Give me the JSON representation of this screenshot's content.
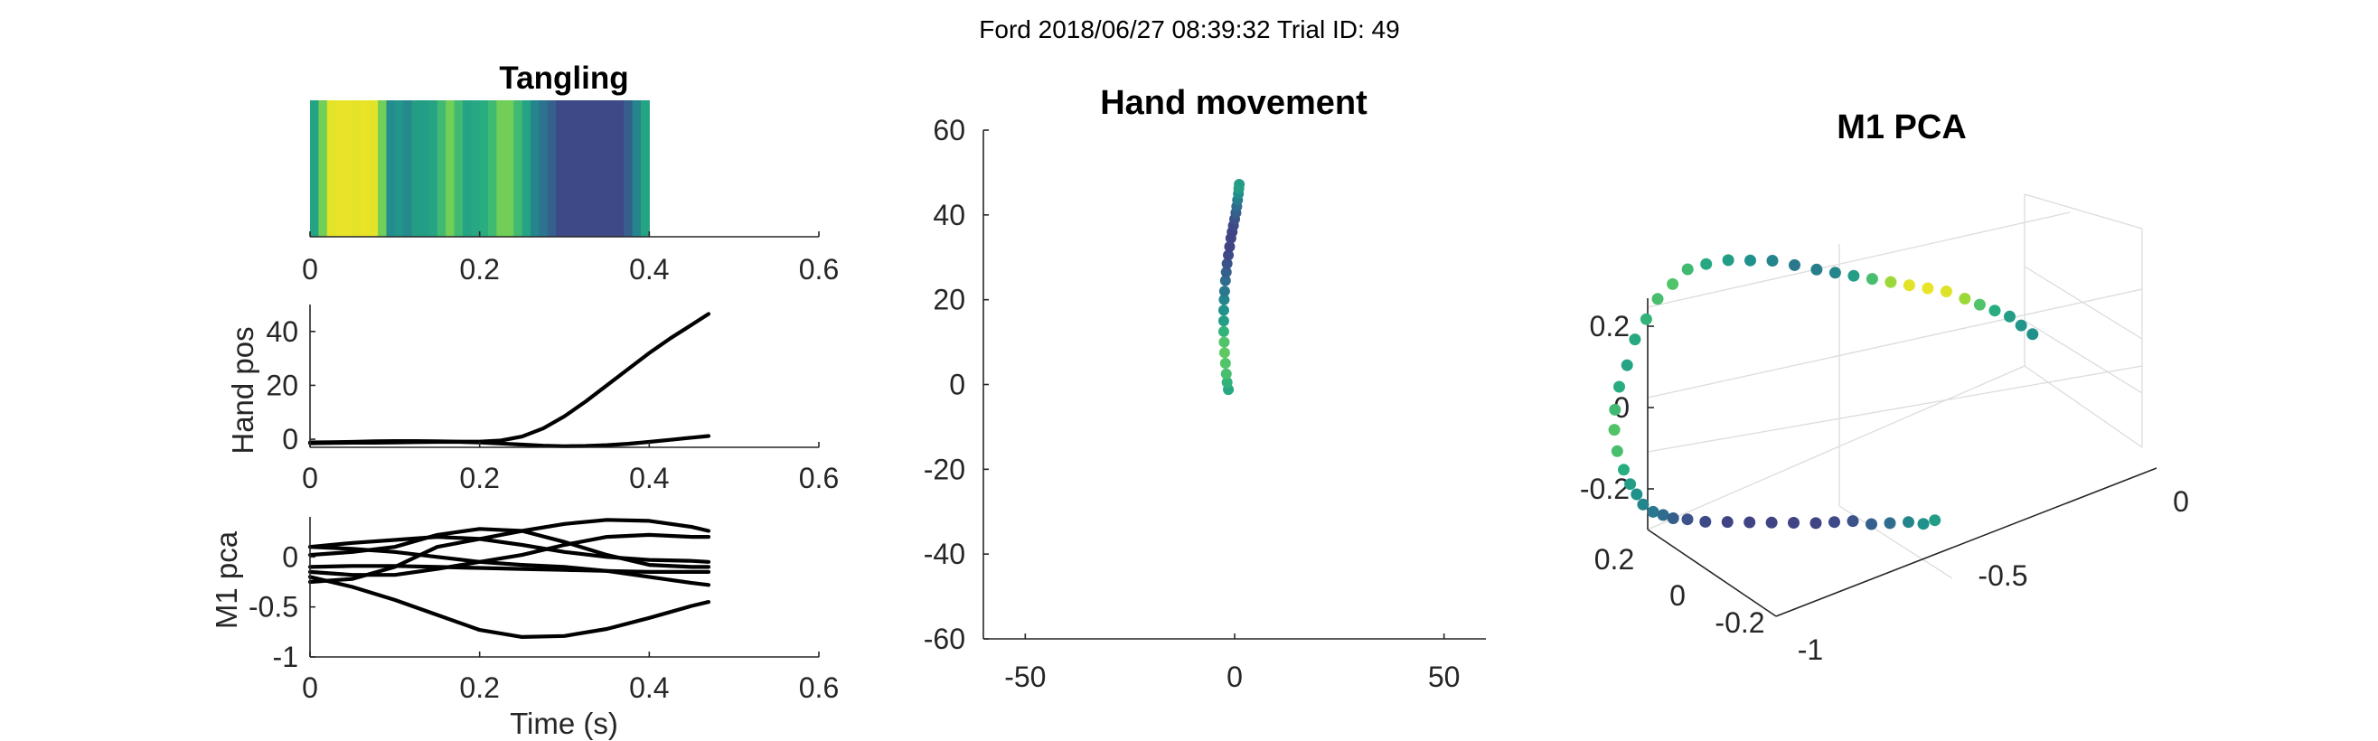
{
  "colors": {
    "map": [
      "#440154",
      "#472f7d",
      "#3b528b",
      "#2c728e",
      "#21918c",
      "#28ae80",
      "#5ec962",
      "#addc30",
      "#fde725"
    ],
    "text": "#262626",
    "trace": "#000000"
  },
  "figure": {
    "super_title": "Ford 2018/06/27 08:39:32 Trial ID: 49"
  },
  "chart_data": [
    {
      "id": "tangling",
      "type": "heatmap",
      "title": "Tangling",
      "xlim": [
        0,
        0.6
      ],
      "x_ticks": [
        "0",
        "0.2",
        "0.4",
        "0.6"
      ],
      "x_tick_values": [
        0,
        0.2,
        0.4,
        0.6
      ],
      "bin_width": 0.01,
      "values": [
        0.58,
        0.78,
        0.96,
        0.97,
        0.97,
        0.96,
        0.97,
        0.96,
        0.78,
        0.48,
        0.52,
        0.47,
        0.55,
        0.55,
        0.58,
        0.68,
        0.78,
        0.68,
        0.58,
        0.6,
        0.62,
        0.68,
        0.78,
        0.78,
        0.68,
        0.58,
        0.45,
        0.38,
        0.3,
        0.22,
        0.22,
        0.22,
        0.22,
        0.22,
        0.22,
        0.22,
        0.22,
        0.3,
        0.45,
        0.58
      ]
    },
    {
      "id": "hand_pos",
      "type": "line",
      "ylabel": "Hand pos",
      "xlim": [
        0,
        0.6
      ],
      "ylim": [
        -3,
        50
      ],
      "x_ticks": [
        "0",
        "0.2",
        "0.4",
        "0.6"
      ],
      "x_tick_values": [
        0,
        0.2,
        0.4,
        0.6
      ],
      "y_ticks": [
        "0",
        "20",
        "40"
      ],
      "y_tick_values": [
        0,
        20,
        40
      ],
      "x": [
        0.0,
        0.025,
        0.05,
        0.075,
        0.1,
        0.125,
        0.15,
        0.175,
        0.2,
        0.225,
        0.25,
        0.275,
        0.3,
        0.325,
        0.35,
        0.375,
        0.4,
        0.425,
        0.45,
        0.47
      ],
      "series": [
        {
          "name": "y",
          "values": [
            -1.2,
            -1.1,
            -1.0,
            -0.8,
            -0.7,
            -0.7,
            -0.8,
            -0.9,
            -0.9,
            -0.5,
            1.0,
            4.0,
            8.5,
            14.0,
            20.0,
            26.0,
            32.0,
            37.5,
            42.5,
            46.5
          ]
        },
        {
          "name": "x",
          "values": [
            -1.5,
            -1.4,
            -1.3,
            -1.3,
            -1.2,
            -1.1,
            -1.0,
            -1.0,
            -1.2,
            -1.6,
            -2.0,
            -2.4,
            -2.6,
            -2.5,
            -2.2,
            -1.7,
            -1.0,
            -0.2,
            0.6,
            1.2
          ]
        }
      ]
    },
    {
      "id": "m1_pca",
      "type": "line",
      "xlabel": "Time (s)",
      "ylabel": "M1 pca",
      "xlim": [
        0,
        0.6
      ],
      "ylim": [
        -1,
        0.4
      ],
      "x_ticks": [
        "0",
        "0.2",
        "0.4",
        "0.6"
      ],
      "x_tick_values": [
        0,
        0.2,
        0.4,
        0.6
      ],
      "y_ticks": [
        "-1",
        "-0.5",
        "0"
      ],
      "y_tick_values": [
        -1,
        -0.5,
        0
      ],
      "x": [
        0.0,
        0.05,
        0.1,
        0.15,
        0.2,
        0.25,
        0.3,
        0.35,
        0.4,
        0.45,
        0.47
      ],
      "series": [
        {
          "name": "pc1",
          "values": [
            -0.2,
            -0.3,
            -0.43,
            -0.58,
            -0.73,
            -0.8,
            -0.79,
            -0.72,
            -0.61,
            -0.49,
            -0.45
          ]
        },
        {
          "name": "pc2",
          "values": [
            0.1,
            0.14,
            0.17,
            0.2,
            0.18,
            0.12,
            0.05,
            0.0,
            -0.03,
            -0.04,
            -0.05
          ]
        },
        {
          "name": "pc3",
          "values": [
            -0.25,
            -0.22,
            -0.1,
            0.1,
            0.18,
            0.26,
            0.33,
            0.37,
            0.36,
            0.3,
            0.26
          ]
        },
        {
          "name": "pc4",
          "values": [
            0.02,
            0.05,
            0.1,
            0.22,
            0.28,
            0.26,
            0.15,
            0.02,
            -0.08,
            -0.1,
            -0.1
          ]
        },
        {
          "name": "pc5",
          "values": [
            0.1,
            0.08,
            0.05,
            0.0,
            -0.05,
            -0.08,
            -0.1,
            -0.14,
            -0.2,
            -0.26,
            -0.28
          ]
        },
        {
          "name": "pc6",
          "values": [
            -0.15,
            -0.18,
            -0.18,
            -0.12,
            -0.05,
            0.02,
            0.12,
            0.2,
            0.22,
            0.2,
            0.2
          ]
        },
        {
          "name": "pc7",
          "values": [
            -0.1,
            -0.09,
            -0.09,
            -0.1,
            -0.11,
            -0.12,
            -0.13,
            -0.14,
            -0.15,
            -0.15,
            -0.15
          ]
        }
      ]
    },
    {
      "id": "hand_movement",
      "type": "scatter",
      "title": "Hand movement",
      "xlim": [
        -60,
        60
      ],
      "ylim": [
        -60,
        60
      ],
      "x_ticks": [
        "-50",
        "0",
        "50"
      ],
      "x_tick_values": [
        -50,
        0,
        50
      ],
      "y_ticks": [
        "-60",
        "-40",
        "-20",
        "0",
        "20",
        "40",
        "60"
      ],
      "y_tick_values": [
        -60,
        -40,
        -20,
        0,
        20,
        40,
        60
      ],
      "x": [
        -1.5,
        -1.8,
        -2.0,
        -2.2,
        -2.4,
        -2.5,
        -2.6,
        -2.6,
        -2.6,
        -2.5,
        -2.4,
        -2.2,
        -2.0,
        -1.8,
        -1.5,
        -1.2,
        -0.9,
        -0.6,
        -0.3,
        0.0,
        0.3,
        0.5,
        0.7,
        0.9,
        1.0,
        1.1
      ],
      "y": [
        -1.2,
        0.5,
        2.5,
        5.0,
        7.5,
        10.0,
        12.5,
        15.0,
        17.5,
        20.0,
        22.0,
        24.5,
        26.5,
        28.5,
        30.5,
        32.5,
        34.5,
        36.0,
        37.5,
        39.0,
        40.5,
        42.0,
        43.5,
        45.0,
        46.2,
        47.2
      ],
      "color_values": [
        0.6,
        0.65,
        0.7,
        0.72,
        0.75,
        0.72,
        0.65,
        0.55,
        0.5,
        0.45,
        0.4,
        0.35,
        0.3,
        0.25,
        0.22,
        0.2,
        0.2,
        0.2,
        0.22,
        0.25,
        0.3,
        0.35,
        0.42,
        0.48,
        0.55,
        0.55
      ]
    },
    {
      "id": "m1_pca_3d",
      "type": "scatter",
      "title": "M1 PCA",
      "projection": "3d",
      "x_ticks": [
        "-1",
        "-0.5",
        "0"
      ],
      "x_tick_values": [
        -1,
        -0.5,
        0
      ],
      "y_ticks": [
        "-0.2",
        "0",
        "0.2"
      ],
      "y_tick_values": [
        -0.2,
        0,
        0.2
      ],
      "z_ticks": [
        "-0.2",
        "0",
        "0.2"
      ],
      "z_tick_values": [
        -0.2,
        0,
        0.2
      ],
      "x": [
        -0.05,
        -0.07,
        -0.09,
        -0.12,
        -0.15,
        -0.18,
        -0.22,
        -0.26,
        -0.3,
        -0.34,
        -0.38,
        -0.42,
        -0.46,
        -0.5,
        -0.55,
        -0.6,
        -0.65,
        -0.7,
        -0.75,
        -0.79,
        -0.82,
        -0.85,
        -0.87,
        -0.89,
        -0.9,
        -0.91,
        -0.91,
        -0.9,
        -0.88,
        -0.85,
        -0.82,
        -0.79,
        -0.76,
        -0.72,
        -0.68,
        -0.64,
        -0.6,
        -0.55,
        -0.5,
        -0.45,
        -0.4,
        -0.35,
        -0.3,
        -0.26,
        -0.22,
        -0.18,
        -0.14,
        -0.1,
        -0.07,
        -0.05
      ],
      "y": [
        0.05,
        0.04,
        0.03,
        0.02,
        0.01,
        0.0,
        -0.01,
        -0.02,
        -0.03,
        -0.04,
        -0.05,
        -0.06,
        -0.07,
        -0.08,
        -0.09,
        -0.1,
        -0.11,
        -0.12,
        -0.13,
        -0.14,
        -0.15,
        -0.16,
        -0.17,
        -0.18,
        -0.19,
        -0.2,
        -0.21,
        -0.22,
        -0.23,
        -0.24,
        -0.25,
        -0.26,
        -0.27,
        -0.28,
        -0.29,
        -0.3,
        -0.3,
        -0.3,
        -0.29,
        -0.28,
        -0.27,
        -0.26,
        -0.25,
        -0.24,
        -0.23,
        -0.22,
        -0.21,
        -0.2,
        -0.19,
        -0.18
      ],
      "z": [
        0.22,
        0.24,
        0.26,
        0.27,
        0.28,
        0.29,
        0.3,
        0.3,
        0.3,
        0.3,
        0.3,
        0.3,
        0.3,
        0.3,
        0.3,
        0.3,
        0.29,
        0.28,
        0.26,
        0.24,
        0.2,
        0.16,
        0.11,
        0.06,
        0.0,
        -0.05,
        -0.1,
        -0.14,
        -0.18,
        -0.21,
        -0.23,
        -0.24,
        -0.25,
        -0.25,
        -0.24,
        -0.23,
        -0.22,
        -0.21,
        -0.2,
        -0.19,
        -0.18,
        -0.17,
        -0.16,
        -0.15,
        -0.14,
        -0.14,
        -0.13,
        -0.12,
        -0.12,
        -0.11
      ],
      "color_values": [
        0.5,
        0.52,
        0.55,
        0.62,
        0.72,
        0.85,
        0.95,
        0.97,
        0.96,
        0.85,
        0.7,
        0.55,
        0.45,
        0.42,
        0.4,
        0.45,
        0.5,
        0.55,
        0.6,
        0.68,
        0.72,
        0.7,
        0.65,
        0.6,
        0.58,
        0.62,
        0.68,
        0.72,
        0.7,
        0.62,
        0.55,
        0.5,
        0.45,
        0.4,
        0.35,
        0.3,
        0.25,
        0.22,
        0.2,
        0.2,
        0.2,
        0.2,
        0.2,
        0.22,
        0.25,
        0.3,
        0.35,
        0.45,
        0.5,
        0.55
      ]
    }
  ]
}
